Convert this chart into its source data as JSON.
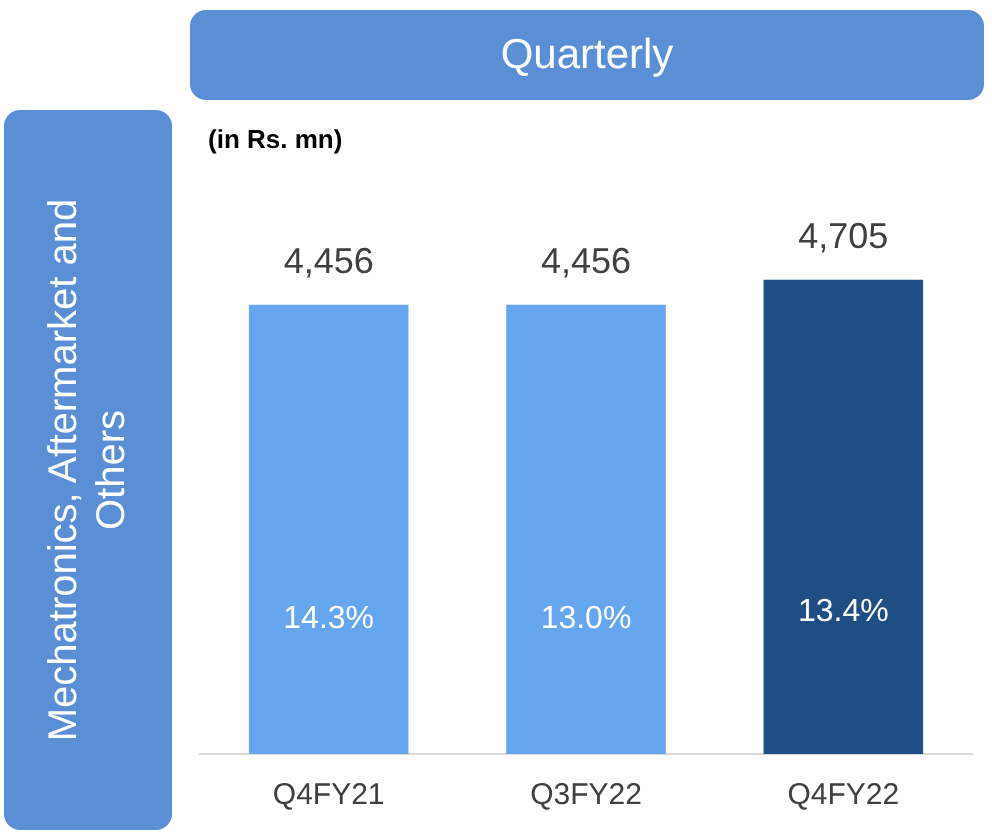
{
  "chart_data": {
    "type": "bar",
    "title": "Quarterly",
    "subtitle": "(in Rs. mn)",
    "ylabel": "Mechatronics, Aftermarket and Others",
    "categories": [
      "Q4FY21",
      "Q3FY22",
      "Q4FY22"
    ],
    "values": [
      4456,
      4456,
      4705
    ],
    "colors": [
      "#66a6ee",
      "#66a6ee",
      "#1f4e85"
    ],
    "value_labels": [
      "4,456",
      "4,456",
      "4,705"
    ],
    "legend": false,
    "grid": false,
    "annotations": [
      "14.3%",
      "13.0%",
      "13.4%"
    ]
  }
}
